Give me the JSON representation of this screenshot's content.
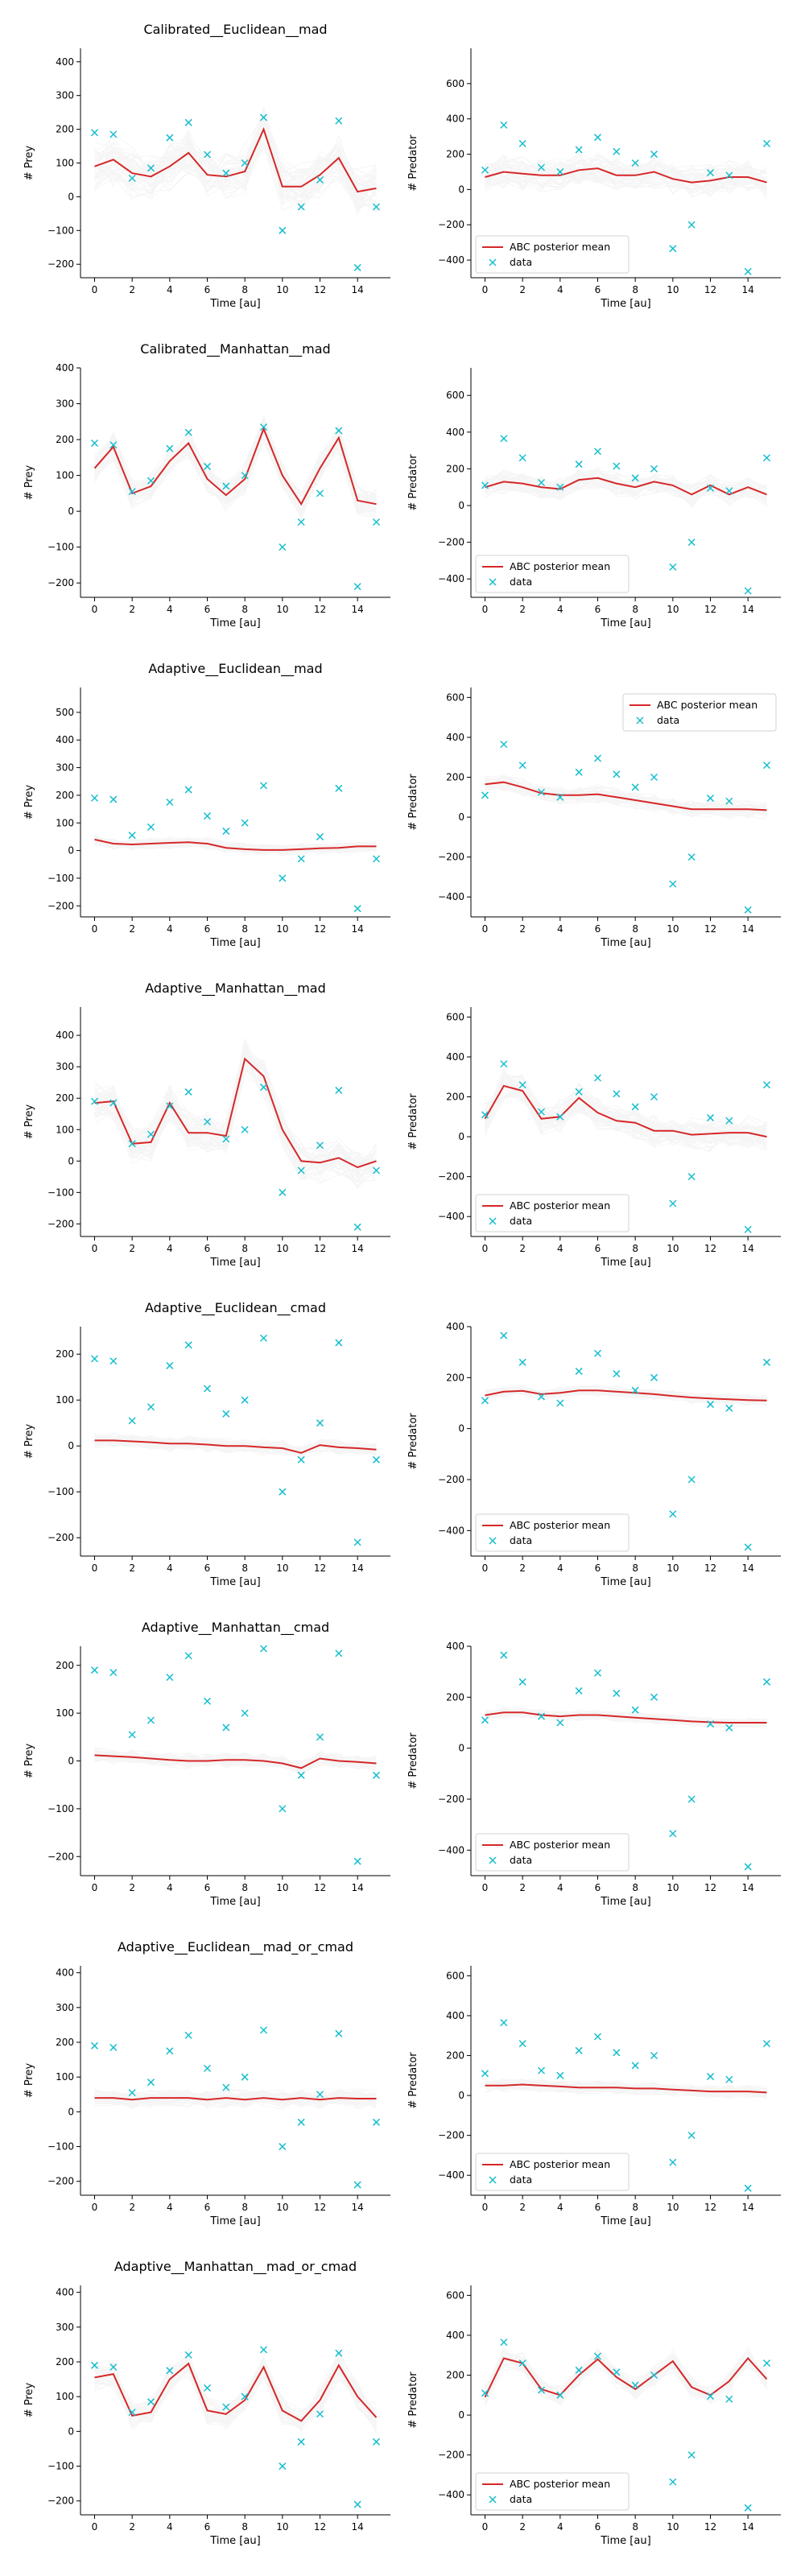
{
  "figure": {
    "xlabel": "Time [au]",
    "ylabel_prey": "# Prey",
    "ylabel_predator": "# Predator",
    "legend_mean": "ABC posterior mean",
    "legend_data": "data",
    "colors": {
      "mean": "#d62728",
      "data": "#17becf",
      "samples": "#9a9a9a"
    }
  },
  "chart_data": {
    "type": "line",
    "x": [
      0,
      1,
      2,
      3,
      4,
      5,
      6,
      7,
      8,
      9,
      10,
      11,
      12,
      13,
      14,
      15
    ],
    "xticks": [
      0,
      2,
      4,
      6,
      8,
      10,
      12,
      14
    ],
    "xlim": [
      -0.75,
      15.75
    ],
    "data_prey": [
      190,
      185,
      55,
      85,
      175,
      220,
      125,
      70,
      100,
      235,
      -100,
      -30,
      50,
      225,
      -210,
      -30
    ],
    "data_predator": [
      110,
      365,
      260,
      125,
      100,
      225,
      295,
      215,
      150,
      200,
      -335,
      -200,
      95,
      80,
      -465,
      260
    ],
    "panels": [
      {
        "title": "Calibrated__Euclidean__mad",
        "prey": {
          "ylim": [
            -240,
            440
          ],
          "yticks": [
            -200,
            -100,
            0,
            100,
            200,
            300,
            400
          ],
          "mean": [
            90,
            110,
            70,
            60,
            90,
            130,
            65,
            60,
            75,
            200,
            30,
            30,
            65,
            115,
            15,
            25
          ],
          "spread": 70,
          "legend": "none"
        },
        "predator": {
          "ylim": [
            -500,
            800
          ],
          "yticks": [
            -400,
            -200,
            0,
            200,
            400,
            600
          ],
          "mean": [
            70,
            100,
            90,
            80,
            80,
            110,
            120,
            80,
            80,
            100,
            60,
            40,
            50,
            70,
            70,
            40
          ],
          "spread": 90,
          "legend": "lower-left"
        }
      },
      {
        "title": "Calibrated__Manhattan__mad",
        "prey": {
          "ylim": [
            -240,
            400
          ],
          "yticks": [
            -200,
            -100,
            0,
            100,
            200,
            300,
            400
          ],
          "mean": [
            120,
            180,
            50,
            70,
            140,
            190,
            90,
            45,
            90,
            230,
            100,
            20,
            120,
            205,
            30,
            20
          ],
          "spread": 40,
          "legend": "none"
        },
        "predator": {
          "ylim": [
            -500,
            750
          ],
          "yticks": [
            -400,
            -200,
            0,
            200,
            400,
            600
          ],
          "mean": [
            100,
            130,
            120,
            100,
            90,
            140,
            150,
            120,
            100,
            130,
            110,
            60,
            110,
            60,
            100,
            60
          ],
          "spread": 60,
          "legend": "lower-left"
        }
      },
      {
        "title": "Adaptive__Euclidean__mad",
        "prey": {
          "ylim": [
            -240,
            590
          ],
          "yticks": [
            -200,
            -100,
            0,
            100,
            200,
            300,
            400,
            500
          ],
          "mean": [
            40,
            25,
            22,
            25,
            28,
            30,
            25,
            10,
            5,
            2,
            2,
            5,
            8,
            10,
            15,
            15
          ],
          "spread": 20,
          "legend": "none"
        },
        "predator": {
          "ylim": [
            -500,
            650
          ],
          "yticks": [
            -400,
            -200,
            0,
            200,
            400,
            600
          ],
          "mean": [
            165,
            175,
            150,
            120,
            110,
            110,
            115,
            100,
            85,
            70,
            55,
            40,
            40,
            40,
            40,
            35
          ],
          "spread": 40,
          "legend": "upper-right"
        }
      },
      {
        "title": "Adaptive__Manhattan__mad",
        "prey": {
          "ylim": [
            -240,
            490
          ],
          "yticks": [
            -200,
            -100,
            0,
            100,
            200,
            300,
            400
          ],
          "mean": [
            185,
            190,
            55,
            60,
            185,
            90,
            90,
            80,
            325,
            270,
            100,
            0,
            -5,
            10,
            -20,
            0
          ],
          "spread": 60,
          "legend": "none"
        },
        "predator": {
          "ylim": [
            -500,
            650
          ],
          "yticks": [
            -400,
            -200,
            0,
            200,
            400,
            600
          ],
          "mean": [
            90,
            255,
            230,
            90,
            100,
            195,
            120,
            80,
            70,
            30,
            30,
            10,
            15,
            20,
            20,
            0
          ],
          "spread": 80,
          "legend": "lower-left"
        }
      },
      {
        "title": "Adaptive__Euclidean__cmad",
        "prey": {
          "ylim": [
            -240,
            260
          ],
          "yticks": [
            -200,
            -100,
            0,
            100,
            200
          ],
          "mean": [
            12,
            12,
            10,
            8,
            5,
            5,
            3,
            0,
            0,
            -3,
            -5,
            -15,
            2,
            -3,
            -5,
            -8
          ],
          "spread": 15,
          "legend": "none"
        },
        "predator": {
          "ylim": [
            -500,
            400
          ],
          "yticks": [
            -400,
            -200,
            0,
            200,
            400
          ],
          "mean": [
            130,
            145,
            148,
            135,
            140,
            150,
            150,
            145,
            140,
            135,
            128,
            122,
            118,
            115,
            112,
            110
          ],
          "spread": 20,
          "legend": "lower-left"
        }
      },
      {
        "title": "Adaptive__Manhattan__cmad",
        "prey": {
          "ylim": [
            -240,
            240
          ],
          "yticks": [
            -200,
            -100,
            0,
            100,
            200
          ],
          "mean": [
            12,
            10,
            8,
            5,
            2,
            0,
            0,
            2,
            2,
            0,
            -5,
            -15,
            5,
            0,
            -2,
            -5
          ],
          "spread": 15,
          "legend": "none"
        },
        "predator": {
          "ylim": [
            -500,
            400
          ],
          "yticks": [
            -400,
            -200,
            0,
            200,
            400
          ],
          "mean": [
            130,
            140,
            140,
            130,
            125,
            130,
            130,
            125,
            120,
            115,
            110,
            105,
            102,
            100,
            100,
            100
          ],
          "spread": 20,
          "legend": "lower-left"
        }
      },
      {
        "title": "Adaptive__Euclidean__mad_or_cmad",
        "prey": {
          "ylim": [
            -240,
            420
          ],
          "yticks": [
            -200,
            -100,
            0,
            100,
            200,
            300,
            400
          ],
          "mean": [
            40,
            40,
            35,
            40,
            40,
            40,
            35,
            40,
            35,
            40,
            35,
            40,
            35,
            40,
            38,
            38
          ],
          "spread": 25,
          "legend": "none"
        },
        "predator": {
          "ylim": [
            -500,
            650
          ],
          "yticks": [
            -400,
            -200,
            0,
            200,
            400,
            600
          ],
          "mean": [
            50,
            50,
            55,
            50,
            45,
            40,
            40,
            40,
            35,
            35,
            30,
            25,
            20,
            20,
            20,
            15
          ],
          "spread": 30,
          "legend": "lower-left"
        }
      },
      {
        "title": "Adaptive__Manhattan__mad_or_cmad",
        "prey": {
          "ylim": [
            -240,
            420
          ],
          "yticks": [
            -200,
            -100,
            0,
            100,
            200,
            300,
            400
          ],
          "mean": [
            155,
            165,
            45,
            55,
            150,
            195,
            60,
            50,
            90,
            185,
            60,
            30,
            90,
            190,
            100,
            40
          ],
          "spread": 40,
          "legend": "none"
        },
        "predator": {
          "ylim": [
            -500,
            650
          ],
          "yticks": [
            -400,
            -200,
            0,
            200,
            400,
            600
          ],
          "mean": [
            90,
            285,
            260,
            130,
            100,
            200,
            280,
            190,
            130,
            200,
            270,
            140,
            100,
            170,
            285,
            180
          ],
          "spread": 50,
          "legend": "lower-left"
        }
      }
    ]
  }
}
